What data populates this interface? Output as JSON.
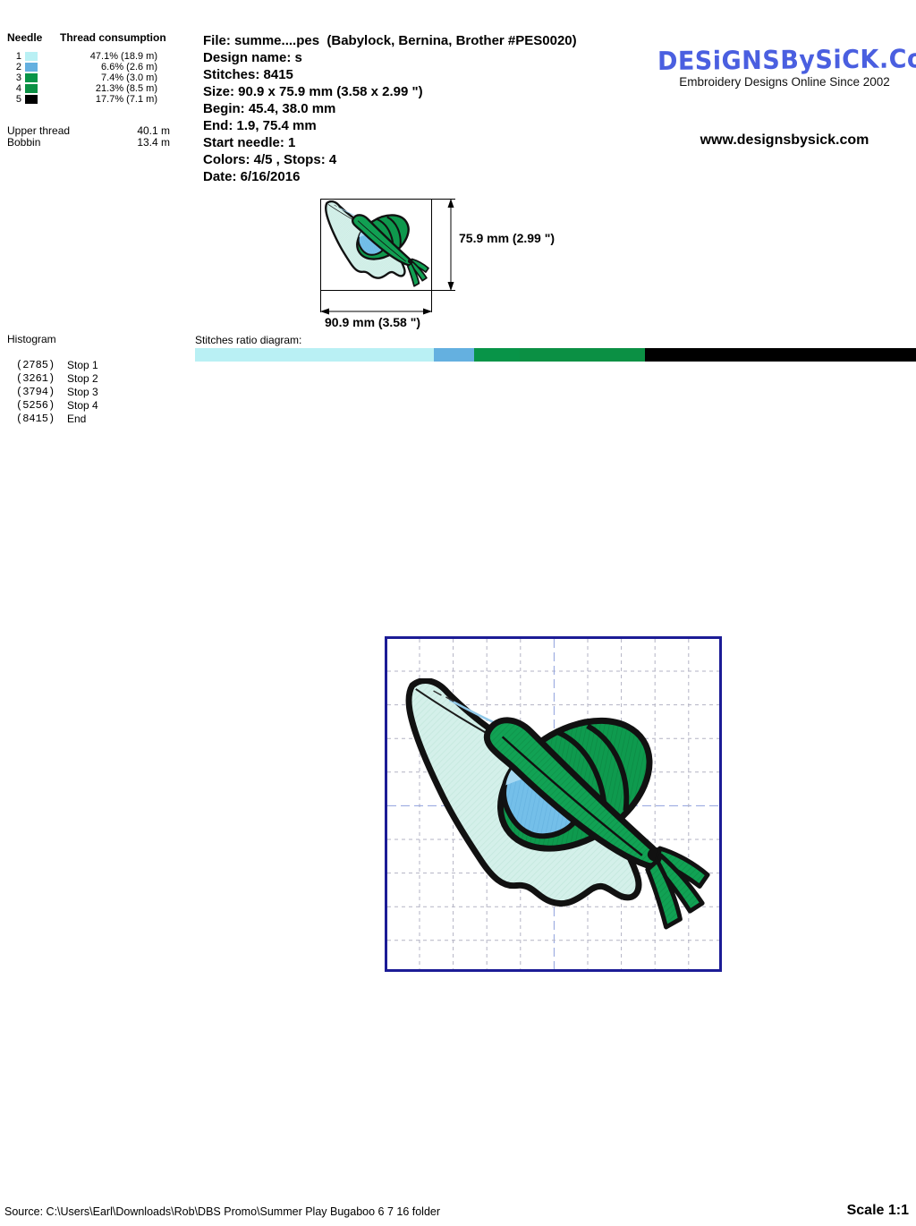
{
  "needle_table": {
    "needle_header": "Needle",
    "consumption_header": "Thread consumption",
    "rows": [
      {
        "num": "1",
        "color": "#b9f0f4",
        "text": "47.1% (18.9 m)"
      },
      {
        "num": "2",
        "color": "#64b0e0",
        "text": "6.6% (2.6 m)"
      },
      {
        "num": "3",
        "color": "#089448",
        "text": "7.4% (3.0 m)"
      },
      {
        "num": "4",
        "color": "#0b9044",
        "text": "21.3% (8.5 m)"
      },
      {
        "num": "5",
        "color": "#000000",
        "text": "17.7% (7.1 m)"
      }
    ],
    "upper_thread_label": "Upper thread",
    "upper_thread_value": "40.1 m",
    "bobbin_label": "Bobbin",
    "bobbin_value": "13.4 m"
  },
  "file_info": {
    "lines": [
      "File: summe....pes  (Babylock, Bernina, Brother #PES0020)",
      "Design name: s",
      "Stitches: 8415",
      "Size: 90.9 x 75.9 mm (3.58 x 2.99 \")",
      "Begin: 45.4, 38.0 mm",
      "End: 1.9, 75.4 mm",
      "Start needle: 1",
      "Colors: 4/5 , Stops: 4",
      "Date: 6/16/2016"
    ]
  },
  "logo": {
    "name": "DESiGNSBySiCK.CoM",
    "tagline": "Embroidery Designs Online Since 2002",
    "website": "www.designsbysick.com",
    "color": "#4a5fe0"
  },
  "thumbnail": {
    "height_label": "75.9 mm (2.99 \")",
    "width_label": "90.9 mm (3.58 \")"
  },
  "histogram": {
    "title": "Histogram",
    "rows": [
      {
        "count": "(2785)",
        "label": "Stop 1"
      },
      {
        "count": "(3261)",
        "label": "Stop 2"
      },
      {
        "count": "(3794)",
        "label": "Stop 3"
      },
      {
        "count": "(5256)",
        "label": "Stop 4"
      },
      {
        "count": "(8415)",
        "label": "End"
      }
    ]
  },
  "ratio": {
    "label": "Stitches ratio diagram:",
    "segments": [
      {
        "color": "#b9f0f4",
        "pct": 33.1
      },
      {
        "color": "#64b0e0",
        "pct": 5.66
      },
      {
        "color": "#089448",
        "pct": 6.33
      },
      {
        "color": "#0b9044",
        "pct": 17.37
      },
      {
        "color": "#000000",
        "pct": 37.54
      }
    ]
  },
  "preview": {
    "border_color": "#1c1c96",
    "grid_color": "#b3b3c4",
    "center_grid_color": "#8fa0dd"
  },
  "artwork_colors": {
    "splash": "#d4f0ea",
    "balloon_green": "#0e9a4e",
    "leaf_green": "#11a254",
    "water_blue": "#74bfe9",
    "light_blue": "#a6d8f2",
    "outline": "#111111"
  },
  "footer": {
    "source": "Source: C:\\Users\\Earl\\Downloads\\Rob\\DBS Promo\\Summer Play Bugaboo 6 7 16 folder",
    "scale": "Scale 1:1"
  }
}
